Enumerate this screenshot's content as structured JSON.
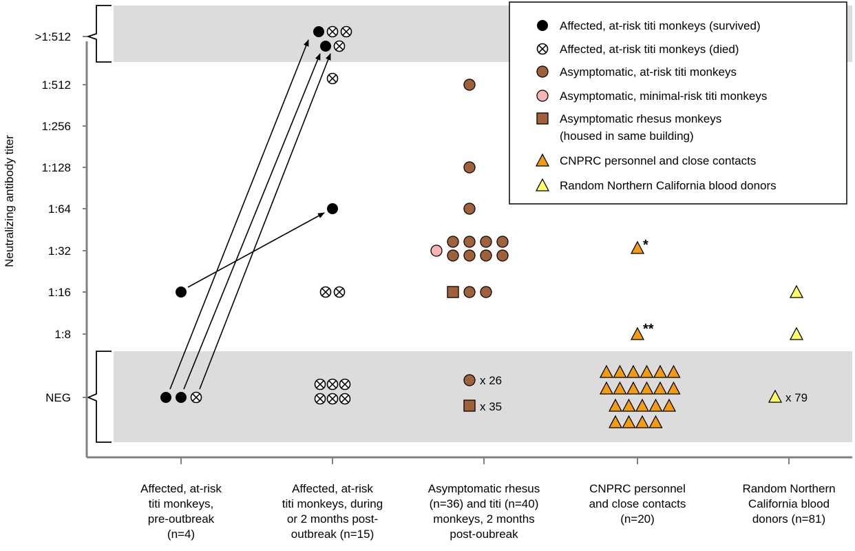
{
  "chart_data": {
    "type": "scatter",
    "title": "",
    "ylabel": "Neutralizing antibody titer",
    "xlabel": "",
    "y_levels": [
      "NEG",
      "1:8",
      "1:16",
      "1:32",
      "1:64",
      "1:128",
      "1:256",
      "1:512",
      ">1:512"
    ],
    "y_tick_labels": [
      ">1:512",
      "1:512",
      "1:256",
      "1:128",
      "1:64",
      "1:32",
      "1:16",
      "1:8",
      "NEG"
    ],
    "categories": [
      [
        "Affected, at-risk",
        "titi monkeys,",
        "pre-outbreak",
        "(n=4)"
      ],
      [
        "Affected, at-risk",
        "titi monkeys, during",
        "or 2 months post-",
        "outbreak (n=15)"
      ],
      [
        "Asymptomatic rhesus",
        "(n=36) and titi (n=40)",
        "monkeys, 2 months",
        "post-oubreak"
      ],
      [
        "CNPRC personnel",
        "and close contacts",
        "(n=20)"
      ],
      [
        "Random Northern",
        "California blood",
        "donors (n=81)"
      ]
    ],
    "shaded_bands": [
      "NEG",
      ">1:512"
    ],
    "series": [
      {
        "name": "Affected, at-risk titi monkeys (survived)",
        "marker": "filled-circle",
        "color": "#000000",
        "points": [
          {
            "group": 0,
            "level": "NEG",
            "count": 2
          },
          {
            "group": 0,
            "level": "1:16",
            "count": 1
          },
          {
            "group": 1,
            "level": "1:64",
            "count": 1
          },
          {
            "group": 1,
            "level": ">1:512",
            "count": 2
          }
        ]
      },
      {
        "name": "Affected, at-risk titi monkeys (died)",
        "marker": "crossed-circle",
        "color": "#ffffff",
        "points": [
          {
            "group": 0,
            "level": "NEG",
            "count": 1
          },
          {
            "group": 1,
            "level": "NEG",
            "count": 6
          },
          {
            "group": 1,
            "level": "1:16",
            "count": 2
          },
          {
            "group": 1,
            "level": "1:512",
            "count": 1
          },
          {
            "group": 1,
            "level": ">1:512",
            "count": 3
          }
        ]
      },
      {
        "name": "Asymptomatic, at-risk titi monkeys",
        "marker": "circle",
        "color": "#a0603a",
        "points": [
          {
            "group": 2,
            "level": "NEG",
            "count": 26
          },
          {
            "group": 2,
            "level": "1:16",
            "count": 2
          },
          {
            "group": 2,
            "level": "1:32",
            "count": 8
          },
          {
            "group": 2,
            "level": "1:64",
            "count": 1
          },
          {
            "group": 2,
            "level": "1:128",
            "count": 1
          },
          {
            "group": 2,
            "level": "1:512",
            "count": 1
          }
        ]
      },
      {
        "name": "Asymptomatic, minimal-risk titi monkeys",
        "marker": "circle",
        "color": "#f6b3b3",
        "points": [
          {
            "group": 2,
            "level": "1:32",
            "count": 1
          }
        ]
      },
      {
        "name": "Asymptomatic rhesus monkeys (housed in same building)",
        "marker": "square",
        "color": "#a0603a",
        "points": [
          {
            "group": 2,
            "level": "NEG",
            "count": 35
          },
          {
            "group": 2,
            "level": "1:16",
            "count": 1
          }
        ]
      },
      {
        "name": "CNPRC personnel and close contacts",
        "marker": "triangle",
        "color": "#f39c12",
        "points": [
          {
            "group": 3,
            "level": "NEG",
            "count": 18
          },
          {
            "group": 3,
            "level": "1:8",
            "count": 1
          },
          {
            "group": 3,
            "level": "1:32",
            "count": 1
          }
        ]
      },
      {
        "name": "Random Northern California blood donors",
        "marker": "triangle",
        "color": "#ffff66",
        "points": [
          {
            "group": 4,
            "level": "NEG",
            "count": 79
          },
          {
            "group": 4,
            "level": "1:8",
            "count": 1
          },
          {
            "group": 4,
            "level": "1:16",
            "count": 1
          }
        ]
      }
    ],
    "legend": {
      "position": "top-right",
      "entries": [
        {
          "marker": "filled-circle",
          "color": "#000000",
          "lines": [
            "Affected, at-risk titi monkeys (survived)"
          ]
        },
        {
          "marker": "crossed-circle",
          "color": "#ffffff",
          "lines": [
            "Affected, at-risk titi monkeys (died)"
          ]
        },
        {
          "marker": "circle",
          "color": "#a0603a",
          "lines": [
            "Asymptomatic, at-risk titi monkeys"
          ]
        },
        {
          "marker": "circle",
          "color": "#f6b3b3",
          "lines": [
            "Asymptomatic, minimal-risk titi monkeys"
          ]
        },
        {
          "marker": "square",
          "color": "#a0603a",
          "lines": [
            "Asymptomatic rhesus monkeys",
            "(housed in same building)"
          ]
        },
        {
          "marker": "triangle",
          "color": "#f39c12",
          "lines": [
            "CNPRC personnel and close contacts"
          ]
        },
        {
          "marker": "triangle",
          "color": "#ffff66",
          "lines": [
            "Random Northern California blood donors"
          ]
        }
      ]
    },
    "multiplier_labels": [
      {
        "group": 2,
        "marker": "circle",
        "text": "x 26"
      },
      {
        "group": 2,
        "marker": "square",
        "text": "x 35"
      },
      {
        "group": 4,
        "marker": "triangle",
        "text": "x 79"
      }
    ],
    "annotations": [
      {
        "group": 3,
        "level": "1:32",
        "text": "*"
      },
      {
        "group": 3,
        "level": "1:8",
        "text": "**"
      }
    ],
    "arrows": [
      {
        "from_group": 0,
        "from_level": "1:16",
        "to_group": 1,
        "to_level": "1:64"
      },
      {
        "from_group": 0,
        "from_level": "NEG",
        "to_group": 1,
        "to_level": ">1:512"
      },
      {
        "from_group": 0,
        "from_level": "NEG",
        "to_group": 1,
        "to_level": ">1:512"
      },
      {
        "from_group": 0,
        "from_level": "NEG",
        "to_group": 1,
        "to_level": ">1:512"
      }
    ]
  }
}
